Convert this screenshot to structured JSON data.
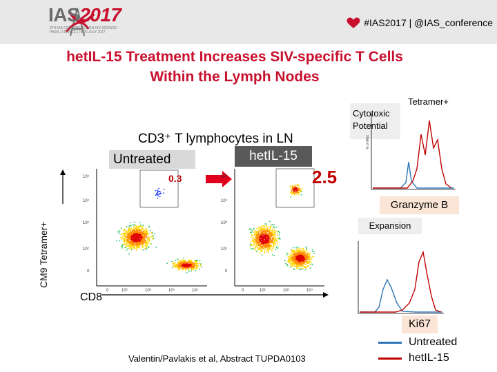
{
  "header": {
    "logo_main": "IAS",
    "logo_year": "2017",
    "logo_subtitle": "9TH IAS CONFERENCE ON HIV SCIENCE · PARIS, FRANCE | 23-26 JULY 2017",
    "hashtag": "#IAS2017 | @IAS_conference"
  },
  "title_line1": "hetIL-15 Treatment Increases SIV-specific T Cells",
  "title_line2": "Within the Lymph Nodes",
  "flow_panel": {
    "heading": "CD3⁺ T lymphocytes in LN",
    "untreated_label": "Untreated",
    "hetil_label": "hetIL-15",
    "untreated_pct": "0.3",
    "hetil_pct": "2.5",
    "y_axis_label": "CM9 Tetramer+",
    "x_axis_label": "CD8"
  },
  "right_panel": {
    "cytotoxic_label": "Cytotoxic Potential",
    "tetramer_label": "Tetramer+",
    "granzyme_label": "Granzyme B",
    "expansion_label": "Expansion",
    "ki67_label": "Ki67"
  },
  "legend": {
    "untreated": "Untreated",
    "hetil": "hetIL-15"
  },
  "colors": {
    "title_red": "#c8102e",
    "untreated_line": "#2e75b6",
    "hetil_line": "#c00000"
  },
  "citation": "Valentin/Pavlakis et al, Abstract TUPDA0103"
}
